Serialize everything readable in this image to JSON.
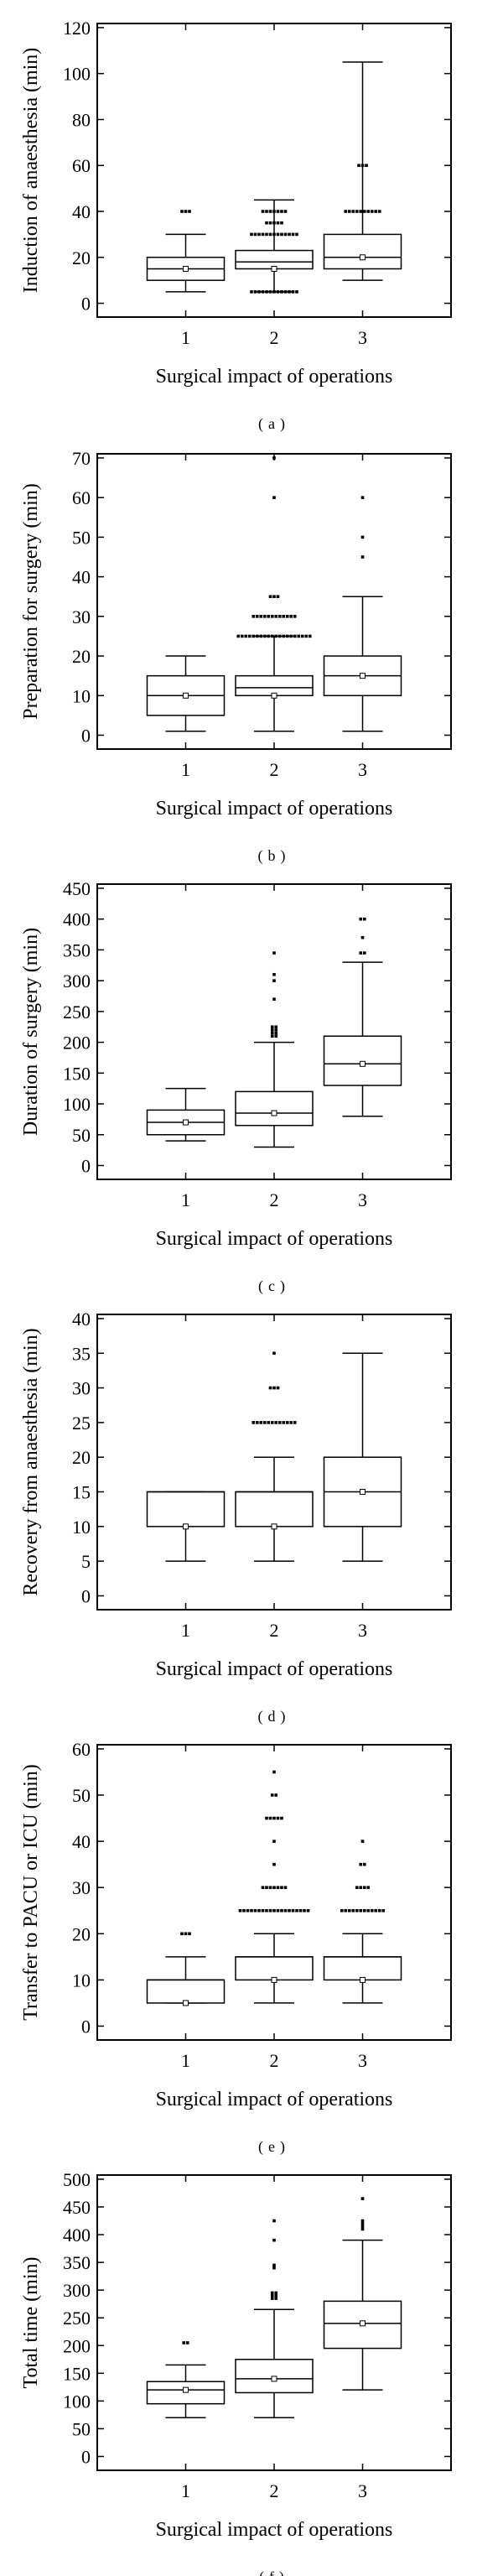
{
  "chart_data": [
    {
      "type": "box",
      "panel_label": "(a)",
      "xlabel": "Surgical impact of operations",
      "ylabel": "Induction of anaesthesia (min)",
      "ylim": [
        0,
        120
      ],
      "yticks": [
        0,
        20,
        40,
        60,
        80,
        100,
        120
      ],
      "categories": [
        "1",
        "2",
        "3"
      ],
      "boxes": [
        {
          "category": "1",
          "whisker_low": 5,
          "q1": 10,
          "median": 15,
          "q3": 20,
          "whisker_high": 30,
          "mean": 15,
          "outliers": [
            40,
            40,
            40
          ]
        },
        {
          "category": "2",
          "whisker_low": 5,
          "q1": 15,
          "median": 18,
          "q3": 23,
          "whisker_high": 45,
          "mean": 15,
          "outliers": [
            5,
            5,
            5,
            5,
            5,
            5,
            5,
            5,
            5,
            5,
            5,
            5,
            5,
            30,
            30,
            30,
            30,
            30,
            30,
            30,
            30,
            30,
            30,
            30,
            30,
            30,
            35,
            35,
            35,
            35,
            35,
            40,
            40,
            40,
            40,
            40,
            40,
            40
          ]
        },
        {
          "category": "3",
          "whisker_low": 10,
          "q1": 15,
          "median": 20,
          "q3": 30,
          "whisker_high": 105,
          "mean": 20,
          "outliers": [
            60,
            60,
            60,
            40,
            40,
            40,
            40,
            40,
            40,
            40,
            40,
            40,
            40
          ]
        }
      ]
    },
    {
      "type": "box",
      "panel_label": "(b)",
      "xlabel": "Surgical impact of operations",
      "ylabel": "Preparation for surgery (min)",
      "ylim": [
        0,
        70
      ],
      "yticks": [
        0,
        10,
        20,
        30,
        40,
        50,
        60,
        70
      ],
      "categories": [
        "1",
        "2",
        "3"
      ],
      "boxes": [
        {
          "category": "1",
          "whisker_low": 1,
          "q1": 5,
          "median": 10,
          "q3": 15,
          "whisker_high": 20,
          "mean": 10,
          "outliers": []
        },
        {
          "category": "2",
          "whisker_low": 1,
          "q1": 10,
          "median": 12,
          "q3": 15,
          "whisker_high": 25,
          "mean": 10,
          "outliers": [
            25,
            25,
            25,
            25,
            25,
            25,
            25,
            25,
            25,
            25,
            25,
            25,
            25,
            25,
            25,
            25,
            25,
            25,
            25,
            25,
            30,
            30,
            30,
            30,
            30,
            30,
            30,
            30,
            30,
            30,
            30,
            30,
            35,
            35,
            35,
            60,
            70
          ]
        },
        {
          "category": "3",
          "whisker_low": 1,
          "q1": 10,
          "median": 15,
          "q3": 20,
          "whisker_high": 35,
          "mean": 15,
          "outliers": [
            45,
            50,
            60
          ]
        }
      ]
    },
    {
      "type": "box",
      "panel_label": "(c)",
      "xlabel": "Surgical impact of operations",
      "ylabel": "Duration of surgery (min)",
      "ylim": [
        0,
        450
      ],
      "yticks": [
        0,
        50,
        100,
        150,
        200,
        250,
        300,
        350,
        400,
        450
      ],
      "categories": [
        "1",
        "2",
        "3"
      ],
      "boxes": [
        {
          "category": "1",
          "whisker_low": 40,
          "q1": 50,
          "median": 70,
          "q3": 90,
          "whisker_high": 125,
          "mean": 70,
          "outliers": []
        },
        {
          "category": "2",
          "whisker_low": 30,
          "q1": 65,
          "median": 85,
          "q3": 120,
          "whisker_high": 200,
          "mean": 85,
          "outliers": [
            210,
            210,
            215,
            215,
            220,
            220,
            225,
            225,
            270,
            300,
            310,
            345
          ]
        },
        {
          "category": "3",
          "whisker_low": 80,
          "q1": 130,
          "median": 165,
          "q3": 210,
          "whisker_high": 330,
          "mean": 165,
          "outliers": [
            345,
            345,
            370,
            400,
            400
          ]
        }
      ]
    },
    {
      "type": "box",
      "panel_label": "(d)",
      "xlabel": "Surgical impact of operations",
      "ylabel": "Recovery from anaesthesia (min)",
      "ylim": [
        0,
        40
      ],
      "yticks": [
        0,
        5,
        10,
        15,
        20,
        25,
        30,
        35,
        40
      ],
      "categories": [
        "1",
        "2",
        "3"
      ],
      "boxes": [
        {
          "category": "1",
          "whisker_low": 5,
          "q1": 10,
          "median": 15,
          "q3": 15,
          "whisker_high": 15,
          "mean": 10,
          "outliers": []
        },
        {
          "category": "2",
          "whisker_low": 5,
          "q1": 10,
          "median": 15,
          "q3": 15,
          "whisker_high": 20,
          "mean": 10,
          "outliers": [
            25,
            25,
            25,
            25,
            25,
            25,
            25,
            25,
            25,
            25,
            25,
            25,
            30,
            30,
            30,
            35
          ]
        },
        {
          "category": "3",
          "whisker_low": 5,
          "q1": 10,
          "median": 15,
          "q3": 20,
          "whisker_high": 35,
          "mean": 15,
          "outliers": []
        }
      ]
    },
    {
      "type": "box",
      "panel_label": "(e)",
      "xlabel": "Surgical impact of operations",
      "ylabel": "Transfer to PACU or ICU (min)",
      "ylim": [
        0,
        60
      ],
      "yticks": [
        0,
        10,
        20,
        30,
        40,
        50,
        60
      ],
      "categories": [
        "1",
        "2",
        "3"
      ],
      "boxes": [
        {
          "category": "1",
          "whisker_low": 5,
          "q1": 5,
          "median": 10,
          "q3": 10,
          "whisker_high": 15,
          "mean": 5,
          "outliers": [
            20,
            20,
            20
          ]
        },
        {
          "category": "2",
          "whisker_low": 5,
          "q1": 10,
          "median": 15,
          "q3": 15,
          "whisker_high": 20,
          "mean": 10,
          "outliers": [
            25,
            25,
            25,
            25,
            25,
            25,
            25,
            25,
            25,
            25,
            25,
            25,
            25,
            25,
            25,
            25,
            25,
            25,
            25,
            30,
            30,
            30,
            30,
            30,
            30,
            30,
            35,
            40,
            45,
            45,
            45,
            45,
            45,
            50,
            50,
            55
          ]
        },
        {
          "category": "3",
          "whisker_low": 5,
          "q1": 10,
          "median": 15,
          "q3": 15,
          "whisker_high": 20,
          "mean": 10,
          "outliers": [
            25,
            25,
            25,
            25,
            25,
            25,
            25,
            25,
            25,
            25,
            25,
            25,
            30,
            30,
            30,
            30,
            35,
            35,
            40
          ]
        }
      ]
    },
    {
      "type": "box",
      "panel_label": "(f)",
      "xlabel": "Surgical impact of operations",
      "ylabel": "Total time (min)",
      "ylim": [
        0,
        500
      ],
      "yticks": [
        0,
        50,
        100,
        150,
        200,
        250,
        300,
        350,
        400,
        450,
        500
      ],
      "categories": [
        "1",
        "2",
        "3"
      ],
      "boxes": [
        {
          "category": "1",
          "whisker_low": 70,
          "q1": 95,
          "median": 120,
          "q3": 135,
          "whisker_high": 165,
          "mean": 120,
          "outliers": [
            205,
            205
          ]
        },
        {
          "category": "2",
          "whisker_low": 70,
          "q1": 115,
          "median": 140,
          "q3": 175,
          "whisker_high": 265,
          "mean": 140,
          "outliers": [
            285,
            285,
            290,
            290,
            295,
            295,
            340,
            345,
            390,
            425
          ]
        },
        {
          "category": "3",
          "whisker_low": 120,
          "q1": 195,
          "median": 240,
          "q3": 280,
          "whisker_high": 390,
          "mean": 240,
          "outliers": [
            410,
            415,
            420,
            425,
            465
          ]
        }
      ]
    }
  ]
}
